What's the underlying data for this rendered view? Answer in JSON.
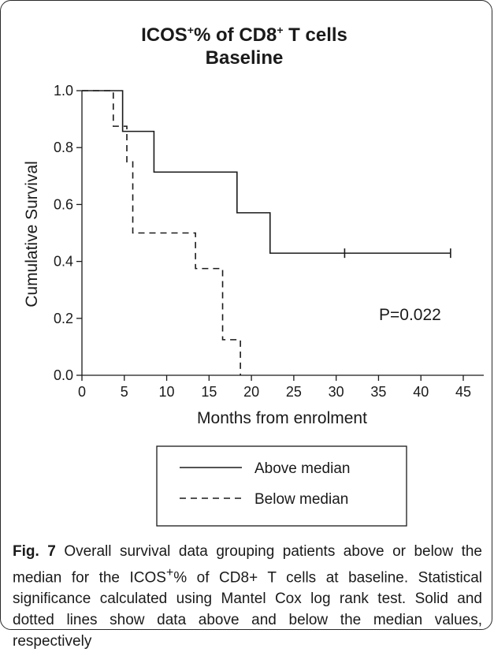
{
  "chart_data": {
    "type": "line",
    "title_main": "ICOS",
    "title_sup1": "+",
    "title_mid": "% of CD8",
    "title_sup2": "+",
    "title_end": " T cells",
    "subtitle": "Baseline",
    "xlabel": "Months from enrolment",
    "ylabel": "Cumulative Survival",
    "xlim": [
      0,
      45
    ],
    "ylim": [
      0,
      1
    ],
    "x_ticks": [
      "0",
      "5",
      "10",
      "15",
      "20",
      "25",
      "30",
      "35",
      "40",
      "45"
    ],
    "y_ticks": [
      "0.0",
      "0.2",
      "0.4",
      "0.6",
      "0.8",
      "1.0"
    ],
    "annotation": "P=0.022",
    "legend_position": "below plot",
    "series": [
      {
        "name": "Above median",
        "style": "solid",
        "x": [
          0,
          4.8,
          8.5,
          18.3,
          22.2,
          43.5
        ],
        "y": [
          1.0,
          0.857,
          0.714,
          0.571,
          0.429,
          0.429
        ],
        "censored": [
          {
            "x": 31,
            "y": 0.429
          },
          {
            "x": 43.5,
            "y": 0.429
          }
        ]
      },
      {
        "name": "Below median",
        "style": "dashed",
        "x": [
          0,
          3.7,
          5.3,
          6.0,
          13.4,
          16.6,
          18.7
        ],
        "y": [
          1.0,
          0.875,
          0.75,
          0.5,
          0.375,
          0.125,
          0.0
        ],
        "censored": []
      }
    ]
  },
  "caption": {
    "label": "Fig. 7",
    "text_a": " Overall survival data grouping patients above or below the median for the ICOS",
    "sup": "+",
    "text_b": "% of CD8+ T cells at baseline. Statistical significance calculated using Mantel Cox log rank test. Solid and dotted lines show data above and below the median values, respectively"
  },
  "colors": {
    "line": "#1a1a1a",
    "frame": "#2a2a2a"
  }
}
